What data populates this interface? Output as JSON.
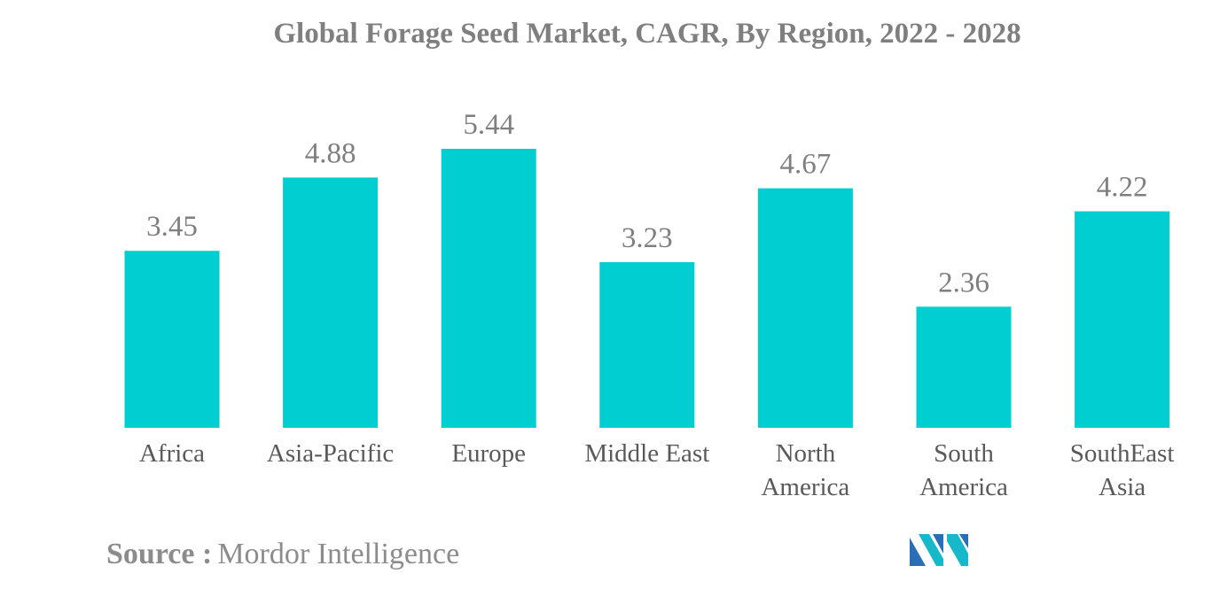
{
  "chart_data": {
    "type": "bar",
    "title": "Global Forage Seed Market, CAGR, By Region, 2022 - 2028",
    "categories": [
      [
        "Africa"
      ],
      [
        "Asia-Pacific"
      ],
      [
        "Europe"
      ],
      [
        "Middle East"
      ],
      [
        "North",
        "America"
      ],
      [
        "South",
        "America"
      ],
      [
        "SouthEast",
        "Asia"
      ]
    ],
    "values": [
      3.45,
      4.88,
      5.44,
      3.23,
      4.67,
      2.36,
      4.22
    ],
    "value_labels": [
      "3.45",
      "4.88",
      "5.44",
      "3.23",
      "4.67",
      "2.36",
      "4.22"
    ],
    "xlabel": "",
    "ylabel": "",
    "ylim": [
      0,
      5.44
    ],
    "grid": false,
    "legend": "none",
    "bar_color": "#00ced1"
  },
  "source": {
    "label": "Source :",
    "text": "Mordor Intelligence"
  },
  "logo": {
    "icon": "mordor-intelligence-logo-icon",
    "colors": [
      "#2a6fb5",
      "#16b8c9"
    ]
  }
}
